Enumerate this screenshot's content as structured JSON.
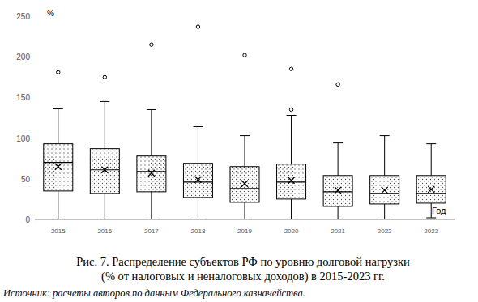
{
  "chart_data": {
    "type": "box",
    "title": "Рис. 7. Распределение субъектов РФ по уровню долговой нагрузки",
    "subtitle": "(% от налоговых и неналоговых доходов) в 2015-2023 гг.",
    "source": "Источник: расчеты авторов по данным Федерального казначейства.",
    "y_label": "%",
    "x_label": "Год",
    "categories": [
      "2015",
      "2016",
      "2017",
      "2018",
      "2019",
      "2020",
      "2021",
      "2022",
      "2023"
    ],
    "min": [
      0,
      0,
      0,
      0,
      0,
      0,
      0,
      0,
      2
    ],
    "q1": [
      35,
      32,
      34,
      27,
      21,
      25,
      16,
      19,
      20
    ],
    "median": [
      70,
      61,
      59,
      46,
      38,
      46,
      34,
      32,
      32
    ],
    "q3": [
      93,
      87,
      78,
      69,
      65,
      68,
      54,
      54,
      54
    ],
    "max": [
      136,
      145,
      135,
      114,
      103,
      128,
      94,
      103,
      93
    ],
    "mean": [
      65,
      61,
      57,
      49,
      44,
      48,
      36,
      36,
      37
    ],
    "outliers": [
      [
        181
      ],
      [
        175
      ],
      [
        215
      ],
      [
        237
      ],
      [
        202
      ],
      [
        185,
        135
      ],
      [
        166
      ],
      [],
      []
    ],
    "ylim": [
      0,
      250
    ],
    "yticks": [
      0,
      50,
      100,
      150,
      200,
      250
    ],
    "grid": false,
    "color": "#000000"
  }
}
